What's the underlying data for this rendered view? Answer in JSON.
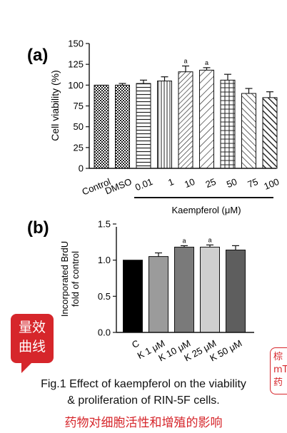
{
  "chart_data": [
    {
      "panel": "(a)",
      "type": "bar",
      "ylabel": "Cell viability (%)",
      "ylim": [
        0,
        150
      ],
      "yticks": [
        0,
        25,
        50,
        75,
        100,
        125,
        150
      ],
      "categories": [
        "Control",
        "DMSO",
        "0.01",
        "1",
        "10",
        "25",
        "50",
        "75",
        "100"
      ],
      "values": [
        100,
        100,
        102,
        105,
        116,
        118,
        106,
        90,
        85
      ],
      "errors": [
        0,
        2,
        4,
        5,
        7,
        3,
        7,
        6,
        7
      ],
      "annotations": [
        "",
        "",
        "",
        "",
        "a",
        "a",
        "",
        "",
        ""
      ],
      "group_label": "Kaempferol (μM)",
      "grid": false
    },
    {
      "panel": "(b)",
      "type": "bar",
      "ylabel": [
        "Incorporated BrdU",
        "fold of control"
      ],
      "ylim": [
        0,
        1.5
      ],
      "yticks": [
        "0.0",
        "0.5",
        "1.0",
        "1.5"
      ],
      "categories": [
        "C",
        "K 1 μM",
        "K 10 μM",
        "K 25 μM",
        "K 50 μM"
      ],
      "values": [
        1.0,
        1.05,
        1.18,
        1.18,
        1.14
      ],
      "errors": [
        0,
        0.05,
        0.02,
        0.03,
        0.06
      ],
      "annotations": [
        "",
        "",
        "a",
        "a",
        ""
      ],
      "colors": [
        "#000000",
        "#9b9b9b",
        "#7a7a7a",
        "#cfcfcf",
        "#5e5e5e"
      ],
      "grid": false
    }
  ],
  "badge": {
    "line1": "量效",
    "line2": "曲线"
  },
  "side_note": {
    "line1": "棕",
    "line2": "mT",
    "line3": "药"
  },
  "caption": {
    "line1": "Fig.1 Effect of kaempferol on the viability",
    "line2": "& proliferation of RIN-5F cells.",
    "cn": "药物对细胞活性和增殖的影响"
  }
}
